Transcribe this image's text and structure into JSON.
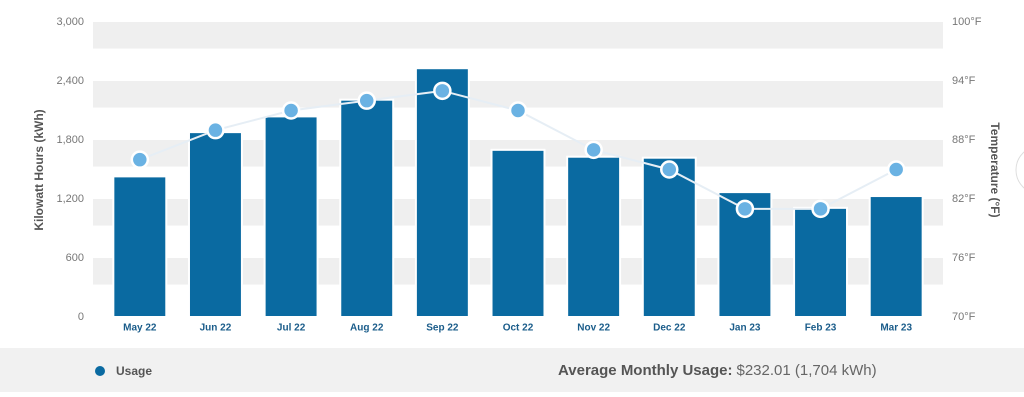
{
  "chart_data": {
    "type": "bar",
    "ylabel": "Kilowatt Hours (kWh)",
    "y2label": "Temperature (°F)",
    "categories": [
      "May 22",
      "Jun 22",
      "Jul 22",
      "Aug 22",
      "Sep 22",
      "Oct 22",
      "Nov 22",
      "Dec 22",
      "Jan 23",
      "Feb 23",
      "Mar 23"
    ],
    "series": [
      {
        "name": "Usage",
        "color": "#0a6aa1",
        "values": [
          1430,
          1880,
          2040,
          2210,
          2530,
          1700,
          1630,
          1620,
          1270,
          1110,
          1230
        ]
      },
      {
        "type": "line",
        "axis": "y2",
        "color": "#6ab2e3",
        "values": [
          86,
          89,
          91,
          92,
          93,
          91,
          87,
          85,
          81,
          81,
          85
        ]
      }
    ],
    "ylim": [
      0,
      3000
    ],
    "yticks": [
      0,
      600,
      {
        "value": 1200,
        "label": "1,200"
      },
      {
        "value": 1800,
        "label": "1,800"
      },
      {
        "value": 2400,
        "label": "2,400"
      },
      {
        "value": 3000,
        "label": "3,000"
      }
    ],
    "y2lim": [
      70,
      100
    ],
    "y2ticks": [
      {
        "value": 70,
        "label": "70°F"
      },
      {
        "value": 76,
        "label": "76°F"
      },
      {
        "value": 82,
        "label": "82°F"
      },
      {
        "value": 88,
        "label": "88°F"
      },
      {
        "value": 94,
        "label": "94°F"
      },
      {
        "value": 100,
        "label": "100°F"
      }
    ],
    "grid": true,
    "summary": {
      "label": "Average Monthly Usage:",
      "value": "$232.01 (1,704 kWh)"
    }
  }
}
